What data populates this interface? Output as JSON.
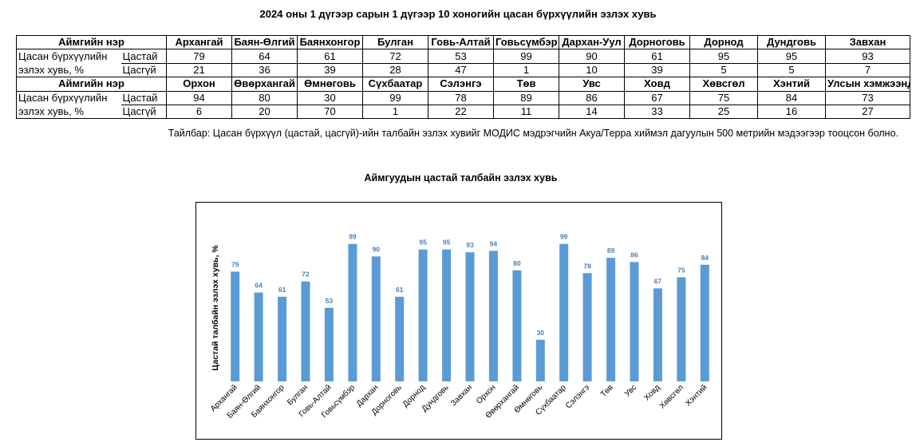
{
  "title": "2024 оны 1 дүгээр сарын 1 дүгээр 10 хоногийн цасан бүрхүүлийн эзлэх хувь",
  "table": {
    "header_label": "Аймгийн нэр",
    "row_label_line1": "Цасан бүрхүүлийн",
    "row_label_line2": "эзлэх хувь, %",
    "sub_labels": [
      "Цастай",
      "Цасгүй"
    ],
    "blocks": [
      {
        "names": [
          "Архангай",
          "Баян-Өлгий",
          "Баянхонгор",
          "Булган",
          "Говь-Алтай",
          "Говьсүмбэр",
          "Дархан-Уул",
          "Дорноговь",
          "Дорнод",
          "Дундговь",
          "Завхан"
        ],
        "snow": [
          "79",
          "64",
          "61",
          "72",
          "53",
          "99",
          "90",
          "61",
          "95",
          "95",
          "93"
        ],
        "nosnow": [
          "21",
          "36",
          "39",
          "28",
          "47",
          "1",
          "10",
          "39",
          "5",
          "5",
          "7"
        ]
      },
      {
        "names": [
          "Орхон",
          "Өвөрхангай",
          "Өмнөговь",
          "Сүхбаатар",
          "Сэлэнгэ",
          "Төв",
          "Увс",
          "Ховд",
          "Хөвсгөл",
          "Хэнтий",
          "Улсын хэмжээнд"
        ],
        "snow": [
          "94",
          "80",
          "30",
          "99",
          "78",
          "89",
          "86",
          "67",
          "75",
          "84",
          "73"
        ],
        "nosnow": [
          "6",
          "20",
          "70",
          "1",
          "22",
          "11",
          "14",
          "33",
          "25",
          "16",
          "27"
        ]
      }
    ]
  },
  "note": "Тайлбар: Цасан бүрхүүл (цастай, цасгүй)-ийн талбайн эзлэх хувийг МОДИС мэдрэгчийн Акуа/Терра хиймэл дагуулын 500 метрийн мэдээгээр тооцсон болно.",
  "chart_data": {
    "type": "bar",
    "title": "Аймгуудын цастай талбайн эзлэх хувь",
    "ylabel": "Цастай талбайн эзлэх хувь, %",
    "xlabel": "",
    "ylim": [
      0,
      100
    ],
    "grid": false,
    "bar_color": "#5B9BD5",
    "label_color": "#4A7FB5",
    "categories": [
      "Архангай",
      "Баян-Өлгий",
      "Баянхонгор",
      "Булган",
      "Говь-Алтай",
      "Говьсүмбэр",
      "Дархан",
      "Дорноговь",
      "Дорнод",
      "Дундговь",
      "Завхан",
      "Орхон",
      "Өвөрхангай",
      "Өмнөговь",
      "Сүхбаатар",
      "Сэлэнгэ",
      "Төв",
      "Увс",
      "Ховд",
      "Хөвсгөл",
      "Хэнтий"
    ],
    "values": [
      79,
      64,
      61,
      72,
      53,
      99,
      90,
      61,
      95,
      95,
      93,
      94,
      80,
      30,
      99,
      78,
      89,
      86,
      67,
      75,
      84
    ]
  }
}
